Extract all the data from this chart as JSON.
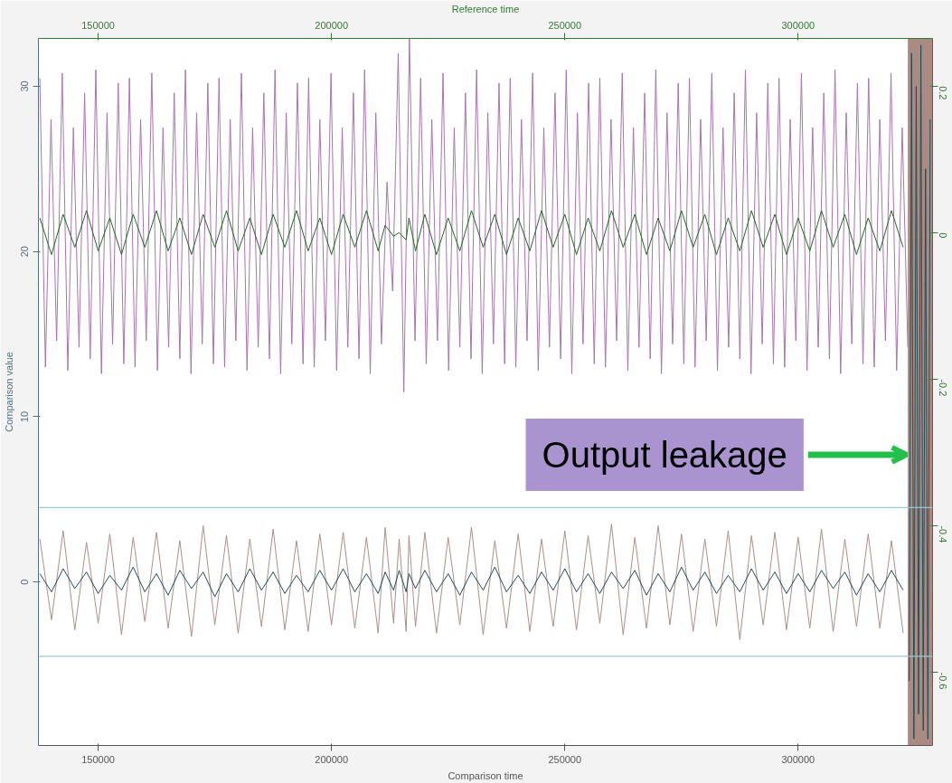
{
  "chart_data": {
    "type": "line",
    "x2label": "Reference time",
    "xlabel": "Comparison time",
    "ylabel": "Comparison value",
    "x": [
      137500,
      140000,
      142500,
      145000,
      147500,
      150000,
      152500,
      155000,
      157500,
      160000,
      162500,
      165000,
      167500,
      170000,
      172500,
      175000,
      177500,
      180000,
      182500,
      185000,
      187500,
      190000,
      192500,
      195000,
      197500,
      200000,
      202500,
      205000,
      207500,
      210000,
      211500,
      213300,
      214500,
      216000,
      216600,
      218000,
      220000,
      222500,
      225000,
      227500,
      230000,
      232500,
      235000,
      237500,
      240000,
      242500,
      245000,
      247500,
      250000,
      252500,
      255000,
      257500,
      260000,
      262500,
      265000,
      267500,
      270000,
      272500,
      275000,
      277500,
      280000,
      282500,
      285000,
      287500,
      290000,
      292500,
      295000,
      297500,
      300000,
      302500,
      305000,
      307500,
      310000,
      312500,
      315000,
      317500,
      320000,
      322500
    ],
    "xlim": [
      137200,
      328800
    ],
    "xticks": [
      150000,
      200000,
      250000,
      300000
    ],
    "x2lim": [
      137200,
      328800
    ],
    "x2ticks": [
      150000,
      200000,
      250000,
      300000
    ],
    "ylim": [
      -9.9,
      32.9
    ],
    "yticks": [
      0,
      10,
      20,
      30
    ],
    "y2lim": [
      -0.7,
      0.265
    ],
    "y2ticks": [
      0.2,
      0,
      -0.2,
      -0.4,
      -0.6
    ],
    "series": [
      {
        "color": "#a874ae",
        "x": [
          137500,
          138700,
          139900,
          141100,
          142300,
          143500,
          144700,
          145900,
          147100,
          148300,
          149500,
          150700,
          151900,
          153100,
          154300,
          155500,
          156700,
          157900,
          159100,
          160300,
          161500,
          162700,
          163900,
          165100,
          166300,
          167500,
          168700,
          169900,
          171100,
          172300,
          173500,
          174700,
          175900,
          177100,
          178300,
          179500,
          180700,
          181900,
          183100,
          184300,
          185500,
          186700,
          187900,
          189100,
          190300,
          191500,
          192700,
          193900,
          195100,
          196300,
          197500,
          198700,
          199900,
          201100,
          202300,
          203500,
          204700,
          205900,
          207100,
          208300,
          209500,
          210700,
          211900,
          213100,
          214300,
          215500,
          216700,
          217900,
          219100,
          220300,
          221500,
          222700,
          223900,
          225100,
          226300,
          227500,
          228700,
          229900,
          231100,
          232300,
          233500,
          234700,
          235900,
          237100,
          238300,
          239500,
          240700,
          241900,
          243100,
          244300,
          245500,
          246700,
          247900,
          249100,
          250300,
          251500,
          252700,
          253900,
          255100,
          256300,
          257500,
          258700,
          259900,
          261100,
          262300,
          263500,
          264700,
          265900,
          267100,
          268300,
          269500,
          270700,
          271900,
          273100,
          274300,
          275500,
          276700,
          277900,
          279100,
          280300,
          281500,
          282700,
          283900,
          285100,
          286300,
          287500,
          288700,
          289900,
          291100,
          292300,
          293500,
          294700,
          295900,
          297100,
          298300,
          299500,
          300700,
          301900,
          303100,
          304300,
          305500,
          306700,
          307900,
          309100,
          310300,
          311500,
          312700,
          313900,
          315100,
          316300,
          317500,
          318700,
          319900,
          321100,
          322300,
          323500
        ],
        "values": [
          30.5,
          13.0,
          28.0,
          14.6,
          30.8,
          12.8,
          27.5,
          14.2,
          29.6,
          13.5,
          31.0,
          12.6,
          28.4,
          14.4,
          30.2,
          13.2,
          30.5,
          13.0,
          28.0,
          14.6,
          30.8,
          12.8,
          27.5,
          14.2,
          29.6,
          13.5,
          31.0,
          12.6,
          28.4,
          14.4,
          30.2,
          13.2,
          30.5,
          13.0,
          28.0,
          14.6,
          30.8,
          12.8,
          27.5,
          14.2,
          29.6,
          13.5,
          31.0,
          12.6,
          28.4,
          14.4,
          30.2,
          13.2,
          30.5,
          13.0,
          28.0,
          14.6,
          30.8,
          12.8,
          27.5,
          14.2,
          29.6,
          13.5,
          31.0,
          12.6,
          28.4,
          14.4,
          24.2,
          17.6,
          32.0,
          11.5,
          32.9,
          14.6,
          30.5,
          13.2,
          28.0,
          14.6,
          30.8,
          12.8,
          27.5,
          14.2,
          29.6,
          13.5,
          31.0,
          12.6,
          28.4,
          14.4,
          30.2,
          13.2,
          30.5,
          13.0,
          28.0,
          14.6,
          30.8,
          12.8,
          27.5,
          14.2,
          29.6,
          13.5,
          31.0,
          12.6,
          28.4,
          14.4,
          30.2,
          13.2,
          30.5,
          13.0,
          28.0,
          14.6,
          30.8,
          12.8,
          27.5,
          14.2,
          29.6,
          13.5,
          31.0,
          12.6,
          28.4,
          14.4,
          30.2,
          13.2,
          30.5,
          13.0,
          28.0,
          14.6,
          30.8,
          12.8,
          27.5,
          14.2,
          29.6,
          13.5,
          31.0,
          12.6,
          28.4,
          14.4,
          30.2,
          13.2,
          30.5,
          13.0,
          28.0,
          14.6,
          30.8,
          12.8,
          27.5,
          14.2,
          29.6,
          13.5,
          31.0,
          12.6,
          28.4,
          14.4,
          30.2,
          13.2,
          30.5,
          13.0,
          28.0,
          14.6,
          30.8,
          12.8,
          27.5,
          14.2
        ]
      },
      {
        "color": "#ad8f86",
        "values": [
          2.6,
          -2.3,
          3.1,
          -2.9,
          2.4,
          -2.5,
          2.9,
          -3.2,
          2.7,
          -2.4,
          3.0,
          -2.8,
          2.5,
          -3.3,
          3.4,
          -2.6,
          2.8,
          -3.1,
          2.6,
          -2.7,
          3.2,
          -2.9,
          2.5,
          -3.0,
          2.9,
          -2.6,
          3.0,
          -2.8,
          2.7,
          -3.1,
          3.3,
          -2.5,
          2.6,
          -3.0,
          2.8,
          -2.7,
          3.0,
          -3.1,
          2.7,
          -2.6,
          3.3,
          -3.2,
          2.5,
          -2.8,
          2.9,
          -3.0,
          2.6,
          -2.7,
          3.1,
          -2.9,
          2.8,
          -2.5,
          3.5,
          -3.2,
          2.7,
          -2.8,
          3.4,
          -2.6,
          2.9,
          -3.0,
          2.6,
          -2.7,
          3.1,
          -3.5,
          2.8,
          -2.6,
          3.0,
          -2.9,
          2.7,
          -2.8,
          3.2,
          -3.0,
          2.6,
          -2.7,
          2.9,
          -2.8,
          2.5,
          -3.1
        ]
      },
      {
        "color": "#1f4e5a",
        "values": [
          0.5,
          -0.6,
          0.8,
          -0.4,
          0.6,
          -0.7,
          0.4,
          -0.5,
          0.9,
          -0.6,
          0.5,
          -0.8,
          0.7,
          -0.4,
          0.6,
          -0.9,
          0.5,
          -0.6,
          0.8,
          -0.5,
          0.6,
          -0.7,
          0.4,
          -0.6,
          0.7,
          -0.5,
          0.8,
          -0.6,
          0.5,
          -0.7,
          0.6,
          -0.5,
          0.7,
          -0.6,
          0.5,
          -0.4,
          0.7,
          -0.6,
          0.5,
          -0.8,
          0.6,
          -0.5,
          0.9,
          -0.6,
          0.4,
          -0.7,
          0.6,
          -0.5,
          0.8,
          -0.6,
          0.5,
          -0.7,
          0.6,
          -0.4,
          0.7,
          -0.8,
          0.5,
          -0.6,
          0.9,
          -0.5,
          0.6,
          -0.7,
          0.4,
          -0.6,
          0.8,
          -0.5,
          0.6,
          -0.7,
          0.5,
          -0.6,
          0.7,
          -0.4,
          0.6,
          -0.8,
          0.5,
          -0.6,
          0.7,
          -0.5
        ]
      },
      {
        "color": "#1f4e5a",
        "x": [
          323800,
          324300,
          324800,
          325300,
          325800,
          326300,
          326800,
          327300,
          327800,
          328300
        ],
        "values": [
          -6,
          32,
          -9.5,
          30,
          -8,
          32.5,
          -9,
          25,
          -9.5,
          28
        ]
      },
      {
        "color": "#1e6b1e",
        "axis": "y2",
        "values": [
          0.02,
          -0.03,
          0.025,
          -0.02,
          0.03,
          -0.025,
          0.02,
          -0.03,
          0.025,
          -0.02,
          0.03,
          -0.025,
          0.02,
          -0.03,
          0.025,
          -0.02,
          0.03,
          -0.025,
          0.02,
          -0.03,
          0.025,
          -0.02,
          0.03,
          -0.025,
          0.02,
          -0.03,
          0.025,
          -0.02,
          0.03,
          -0.025,
          0.01,
          -0.005,
          0.0,
          -0.01,
          0.02,
          -0.025,
          0.025,
          -0.03,
          0.02,
          -0.025,
          0.03,
          -0.02,
          0.025,
          -0.03,
          0.02,
          -0.025,
          0.03,
          -0.02,
          0.025,
          -0.03,
          0.02,
          -0.025,
          0.03,
          -0.02,
          0.025,
          -0.03,
          0.02,
          -0.025,
          0.03,
          -0.02,
          0.025,
          -0.03,
          0.02,
          -0.025,
          0.03,
          -0.02,
          0.025,
          -0.03,
          0.02,
          -0.025,
          0.03,
          -0.02,
          0.025,
          -0.03,
          0.02,
          -0.025,
          0.03,
          -0.02
        ]
      }
    ],
    "bands": [
      {
        "axis": "x",
        "from": 323500,
        "to": 328800,
        "color": "#ab8a82"
      }
    ],
    "ref_lines": [
      {
        "axis": "y",
        "value": 4.5,
        "color": "#9cc8d6"
      },
      {
        "axis": "y",
        "value": -4.5,
        "color": "#9cc8d6"
      }
    ],
    "annotations": [
      {
        "text": "Output leakage",
        "x": 323200,
        "y": 7.7
      }
    ]
  }
}
